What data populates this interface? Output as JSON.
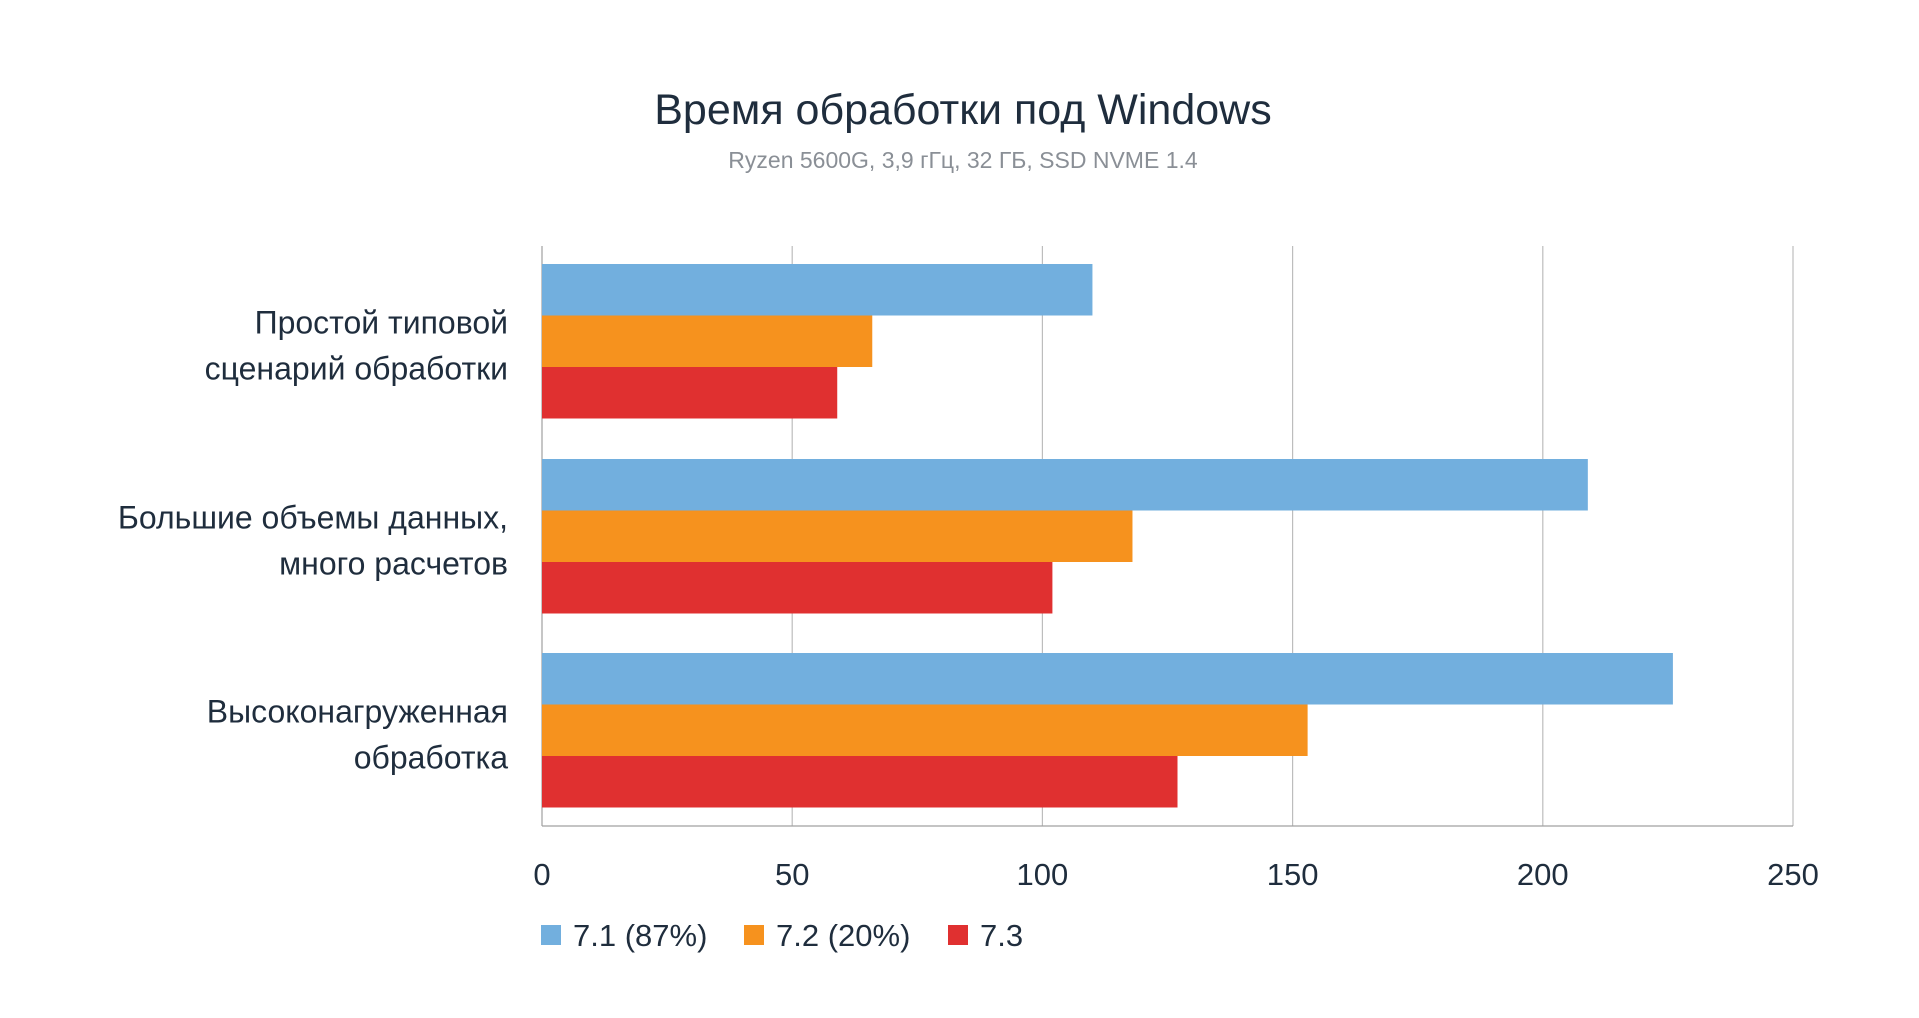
{
  "chart_data": {
    "type": "bar",
    "orientation": "horizontal",
    "title": "Время обработки под Windows",
    "subtitle": "Ryzen 5600G, 3,9 гГц, 32 ГБ, SSD NVME 1.4",
    "categories": [
      [
        "Простой типовой",
        "сценарий обработки"
      ],
      [
        "Большие объемы данных,",
        "много расчетов"
      ],
      [
        "Высоконагруженная",
        "обработка"
      ]
    ],
    "series": [
      {
        "name": "7.1 (87%)",
        "color": "#72afde",
        "values": [
          110,
          209,
          226
        ]
      },
      {
        "name": "7.2 (20%)",
        "color": "#f6921e",
        "values": [
          66,
          118,
          153
        ]
      },
      {
        "name": "7.3",
        "color": "#e03030",
        "values": [
          59,
          102,
          127
        ]
      }
    ],
    "xlim": [
      0,
      250
    ],
    "xticks": [
      "0",
      "50",
      "100",
      "150",
      "200",
      "250"
    ],
    "grid": true,
    "legend_position": "bottom-left"
  }
}
